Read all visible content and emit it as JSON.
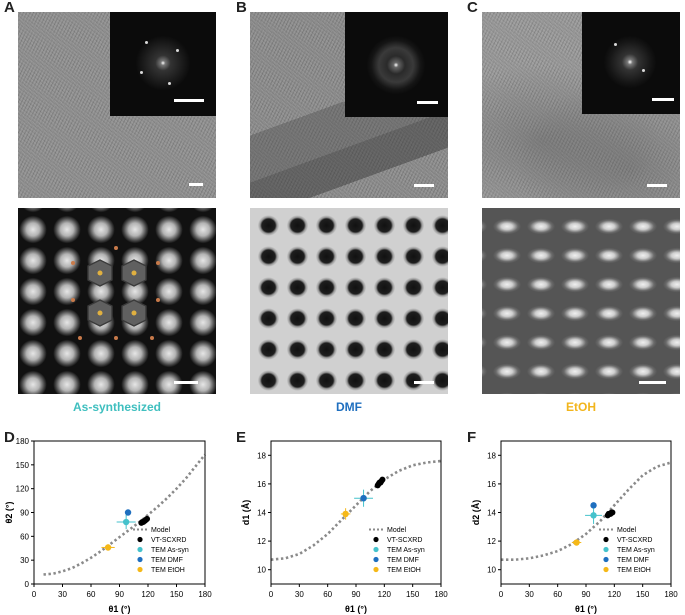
{
  "panels": {
    "A": {
      "label": "A",
      "caption": "As-synthesized",
      "caption_color": "#3fbfbf"
    },
    "B": {
      "label": "B",
      "caption": "DMF",
      "caption_color": "#1f6fbf"
    },
    "C": {
      "label": "C",
      "caption": "EtOH",
      "caption_color": "#f2b51c"
    },
    "D": {
      "label": "D"
    },
    "E": {
      "label": "E"
    },
    "F": {
      "label": "F"
    }
  },
  "legend_labels": [
    "Model",
    "VT-SCXRD",
    "TEM As-syn",
    "TEM DMF",
    "TEM EtOH"
  ],
  "colors": {
    "model": "#8a8a8a",
    "vtscxrd": "#000000",
    "as_syn": "#45c2cc",
    "dmf": "#1f6fbf",
    "etoh": "#f5b818"
  },
  "chart_data": [
    {
      "type": "scatter",
      "panel": "D",
      "xlabel": "θ1 (°)",
      "ylabel": "θ2 (°)",
      "xlim": [
        0,
        180
      ],
      "ylim": [
        0,
        180
      ],
      "xticks": [
        0,
        30,
        60,
        90,
        120,
        150,
        180
      ],
      "yticks": [
        0,
        30,
        60,
        90,
        120,
        150,
        180
      ],
      "legend_position": "bottom-right",
      "model": {
        "name": "Model",
        "x": [
          10,
          20,
          30,
          40,
          50,
          60,
          70,
          80,
          90,
          100,
          110,
          120,
          130,
          140,
          150,
          160,
          170,
          180
        ],
        "y": [
          12,
          13,
          16,
          20,
          26,
          33,
          41,
          50,
          59,
          68,
          77,
          87,
          97,
          108,
          120,
          133,
          148,
          163
        ]
      },
      "vtscxrd": {
        "name": "VT-SCXRD",
        "x": [
          113,
          114,
          115,
          116,
          117,
          118,
          119
        ],
        "y": [
          77,
          78,
          78,
          79,
          80,
          81,
          82
        ]
      },
      "points": [
        {
          "name": "TEM As-syn",
          "x": 97,
          "y": 78,
          "xerr": 10,
          "yerr": 9
        },
        {
          "name": "TEM DMF",
          "x": 99,
          "y": 90,
          "xerr": 0,
          "yerr": 0
        },
        {
          "name": "TEM EtOH",
          "x": 78,
          "y": 46,
          "xerr": 7,
          "yerr": 4
        }
      ]
    },
    {
      "type": "scatter",
      "panel": "E",
      "xlabel": "θ1 (°)",
      "ylabel": "d1 (Å)",
      "xlim": [
        0,
        180
      ],
      "ylim": [
        9,
        19
      ],
      "xticks": [
        0,
        30,
        60,
        90,
        120,
        150,
        180
      ],
      "yticks": [
        10,
        12,
        14,
        16,
        18
      ],
      "legend_position": "bottom-right",
      "model": {
        "name": "Model",
        "x": [
          0,
          15,
          30,
          45,
          60,
          75,
          90,
          105,
          120,
          135,
          150,
          165,
          180
        ],
        "y": [
          10.7,
          10.8,
          11.1,
          11.7,
          12.5,
          13.5,
          14.5,
          15.5,
          16.3,
          16.9,
          17.3,
          17.5,
          17.6
        ]
      },
      "vtscxrd": {
        "name": "VT-SCXRD",
        "x": [
          113,
          114,
          115,
          116,
          117,
          118
        ],
        "y": [
          15.9,
          16.0,
          16.1,
          16.1,
          16.2,
          16.3
        ]
      },
      "points": [
        {
          "name": "TEM As-syn",
          "x": 98,
          "y": 15.0,
          "xerr": 10,
          "yerr": 0.6
        },
        {
          "name": "TEM DMF",
          "x": 98,
          "y": 15.0,
          "xerr": 0,
          "yerr": 0
        },
        {
          "name": "TEM EtOH",
          "x": 79,
          "y": 13.9,
          "xerr": 5,
          "yerr": 0.4
        }
      ]
    },
    {
      "type": "scatter",
      "panel": "F",
      "xlabel": "θ1 (°)",
      "ylabel": "d2 (Å)",
      "xlim": [
        0,
        180
      ],
      "ylim": [
        9,
        19
      ],
      "xticks": [
        0,
        30,
        60,
        90,
        120,
        150,
        180
      ],
      "yticks": [
        10,
        12,
        14,
        16,
        18
      ],
      "legend_position": "bottom-right",
      "model": {
        "name": "Model",
        "x": [
          0,
          15,
          30,
          45,
          60,
          75,
          90,
          105,
          120,
          135,
          150,
          165,
          180
        ],
        "y": [
          10.7,
          10.7,
          10.8,
          11.0,
          11.3,
          11.8,
          12.5,
          13.4,
          14.5,
          15.6,
          16.6,
          17.2,
          17.5
        ]
      },
      "vtscxrd": {
        "name": "VT-SCXRD",
        "x": [
          113,
          114,
          115,
          116,
          117,
          118
        ],
        "y": [
          13.8,
          13.9,
          13.9,
          13.9,
          14.0,
          14.0
        ]
      },
      "points": [
        {
          "name": "TEM As-syn",
          "x": 98,
          "y": 13.8,
          "xerr": 9,
          "yerr": 0.6
        },
        {
          "name": "TEM DMF",
          "x": 98,
          "y": 14.5,
          "xerr": 0,
          "yerr": 0
        },
        {
          "name": "TEM EtOH",
          "x": 80,
          "y": 11.9,
          "xerr": 5,
          "yerr": 0.2
        }
      ]
    }
  ]
}
